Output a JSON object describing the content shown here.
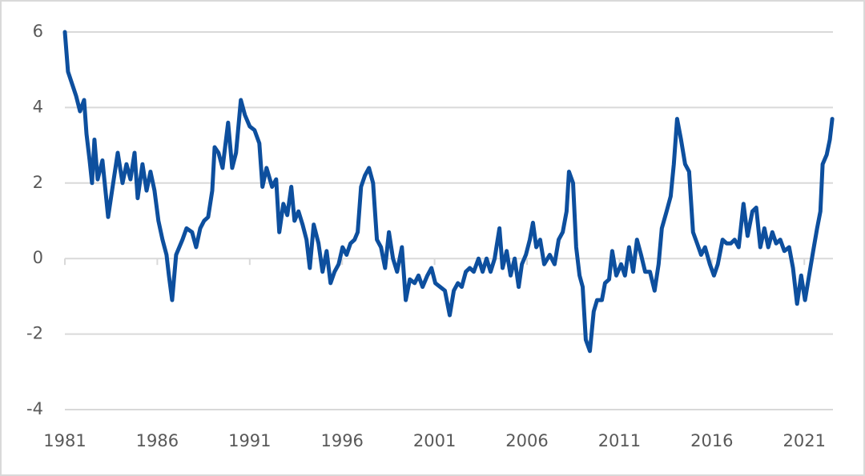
{
  "chart_data": {
    "type": "line",
    "x": [
      1981.0,
      1981.17,
      1981.61,
      1981.82,
      1982.04,
      1982.17,
      1982.34,
      1982.47,
      1982.6,
      1982.77,
      1983.03,
      1983.34,
      1983.55,
      1983.86,
      1984.12,
      1984.33,
      1984.55,
      1984.77,
      1984.94,
      1985.2,
      1985.42,
      1985.63,
      1985.85,
      1986.06,
      1986.28,
      1986.5,
      1986.63,
      1986.8,
      1987.02,
      1987.36,
      1987.58,
      1987.88,
      1988.1,
      1988.32,
      1988.53,
      1988.75,
      1988.97,
      1989.1,
      1989.31,
      1989.53,
      1989.83,
      1990.05,
      1990.26,
      1990.52,
      1990.74,
      1991.0,
      1991.26,
      1991.52,
      1991.69,
      1991.91,
      1992.21,
      1992.43,
      1992.6,
      1992.82,
      1993.03,
      1993.25,
      1993.42,
      1993.64,
      1993.86,
      1994.07,
      1994.25,
      1994.46,
      1994.72,
      1994.94,
      1995.16,
      1995.37,
      1995.59,
      1995.81,
      1996.02,
      1996.24,
      1996.45,
      1996.67,
      1996.84,
      1997.02,
      1997.23,
      1997.45,
      1997.67,
      1997.88,
      1998.1,
      1998.32,
      1998.53,
      1998.75,
      1998.97,
      1999.23,
      1999.44,
      1999.66,
      1999.92,
      2000.13,
      2000.35,
      2000.61,
      2000.83,
      2001.04,
      2001.3,
      2001.56,
      2001.82,
      2002.04,
      2002.26,
      2002.47,
      2002.69,
      2002.9,
      2003.12,
      2003.38,
      2003.6,
      2003.81,
      2004.03,
      2004.25,
      2004.51,
      2004.68,
      2004.9,
      2005.11,
      2005.33,
      2005.55,
      2005.72,
      2005.94,
      2006.15,
      2006.32,
      2006.5,
      2006.71,
      2006.93,
      2007.23,
      2007.49,
      2007.71,
      2007.93,
      2008.14,
      2008.27,
      2008.49,
      2008.66,
      2008.84,
      2009.01,
      2009.18,
      2009.4,
      2009.61,
      2009.79,
      2010.05,
      2010.22,
      2010.44,
      2010.61,
      2010.83,
      2011.09,
      2011.3,
      2011.52,
      2011.74,
      2011.95,
      2012.17,
      2012.39,
      2012.65,
      2012.9,
      2013.12,
      2013.29,
      2013.55,
      2013.77,
      2013.94,
      2014.12,
      2014.33,
      2014.55,
      2014.77,
      2014.98,
      2015.2,
      2015.42,
      2015.63,
      2015.89,
      2016.11,
      2016.32,
      2016.58,
      2016.8,
      2017.02,
      2017.23,
      2017.45,
      2017.71,
      2017.93,
      2018.19,
      2018.4,
      2018.62,
      2018.84,
      2019.05,
      2019.27,
      2019.48,
      2019.7,
      2019.92,
      2020.18,
      2020.39,
      2020.61,
      2020.83,
      2021.04,
      2021.26,
      2021.48,
      2021.69,
      2021.87,
      2021.99,
      2022.21,
      2022.38,
      2022.51
    ],
    "values": [
      6.0,
      4.95,
      4.3,
      3.9,
      4.2,
      3.3,
      2.6,
      2.0,
      3.15,
      2.1,
      2.6,
      1.1,
      1.8,
      2.8,
      2.0,
      2.5,
      2.1,
      2.8,
      1.6,
      2.5,
      1.8,
      2.3,
      1.8,
      1.0,
      0.5,
      0.1,
      -0.45,
      -1.1,
      0.1,
      0.5,
      0.8,
      0.7,
      0.3,
      0.8,
      1.0,
      1.1,
      1.8,
      2.95,
      2.8,
      2.4,
      3.6,
      2.4,
      2.8,
      4.2,
      3.8,
      3.5,
      3.4,
      3.05,
      1.9,
      2.4,
      1.9,
      2.1,
      0.7,
      1.45,
      1.15,
      1.9,
      1.0,
      1.25,
      0.9,
      0.5,
      -0.25,
      0.9,
      0.4,
      -0.35,
      0.2,
      -0.65,
      -0.35,
      -0.15,
      0.3,
      0.1,
      0.4,
      0.5,
      0.7,
      1.9,
      2.2,
      2.4,
      2.0,
      0.5,
      0.3,
      -0.25,
      0.7,
      0.0,
      -0.35,
      0.3,
      -1.1,
      -0.55,
      -0.65,
      -0.45,
      -0.75,
      -0.45,
      -0.25,
      -0.65,
      -0.75,
      -0.85,
      -1.5,
      -0.85,
      -0.65,
      -0.75,
      -0.35,
      -0.25,
      -0.35,
      0.0,
      -0.35,
      0.0,
      -0.35,
      0.0,
      0.8,
      -0.25,
      0.2,
      -0.45,
      0.0,
      -0.75,
      -0.15,
      0.1,
      0.5,
      0.95,
      0.3,
      0.5,
      -0.15,
      0.1,
      -0.15,
      0.5,
      0.7,
      1.25,
      2.3,
      2.0,
      0.3,
      -0.45,
      -0.75,
      -2.15,
      -2.45,
      -1.4,
      -1.1,
      -1.1,
      -0.65,
      -0.55,
      0.2,
      -0.45,
      -0.15,
      -0.45,
      0.3,
      -0.35,
      0.5,
      0.1,
      -0.35,
      -0.35,
      -0.85,
      -0.15,
      0.8,
      1.25,
      1.65,
      2.5,
      3.7,
      3.15,
      2.5,
      2.3,
      0.7,
      0.4,
      0.1,
      0.3,
      -0.15,
      -0.45,
      -0.15,
      0.5,
      0.4,
      0.4,
      0.5,
      0.3,
      1.45,
      0.6,
      1.25,
      1.35,
      0.3,
      0.8,
      0.3,
      0.7,
      0.4,
      0.5,
      0.2,
      0.3,
      -0.25,
      -1.2,
      -0.45,
      -1.1,
      -0.45,
      0.2,
      0.8,
      1.25,
      2.5,
      2.75,
      3.15,
      3.7
    ],
    "color": "#0d4f9e",
    "xlim": [
      1981,
      2022.55
    ],
    "xticks": [
      1981,
      1986,
      1991,
      1996,
      2001,
      2006,
      2011,
      2016,
      2021
    ],
    "ylim": [
      -4,
      6
    ],
    "yticks": [
      -4,
      -2,
      0,
      2,
      4,
      6
    ],
    "grid": true
  }
}
